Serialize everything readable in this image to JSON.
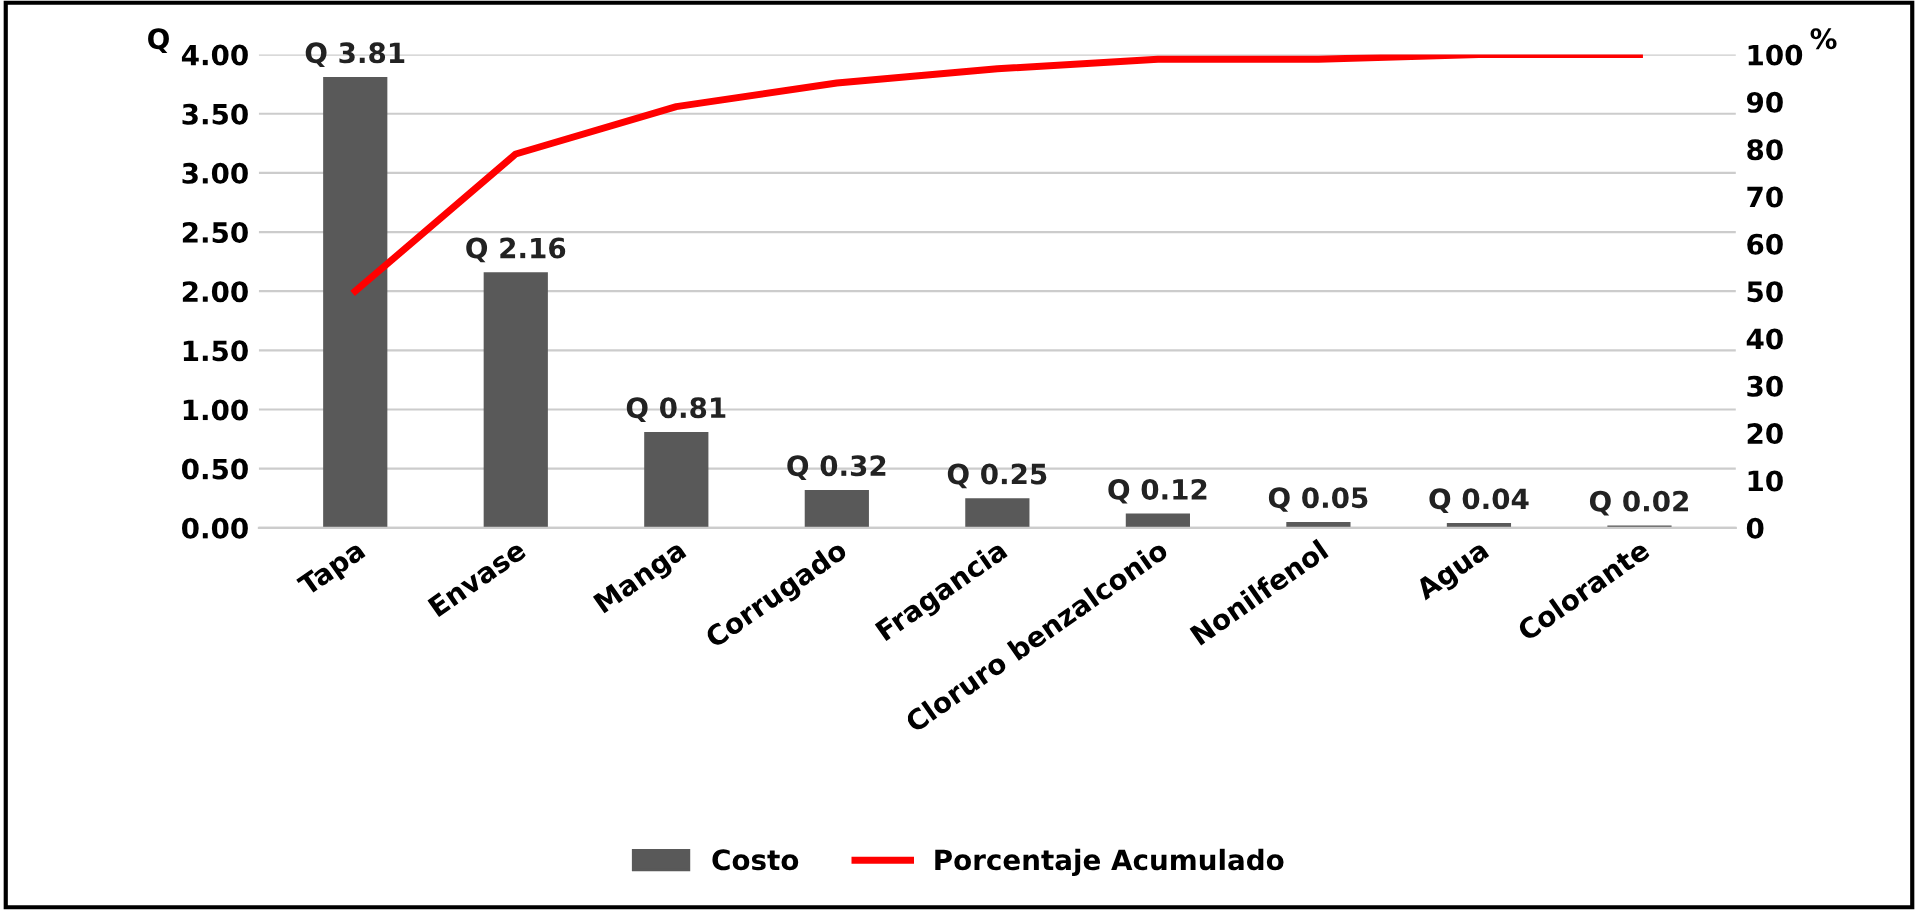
{
  "chart_data": {
    "type": "bar",
    "ylabel": "Q",
    "y2label": "%",
    "categories": [
      "Tapa",
      "Envase",
      "Manga",
      "Corrugado",
      "Fragancia",
      "Cloruro benzalconio",
      "Nonilfenol",
      "Agua",
      "Colorante"
    ],
    "series": [
      {
        "name": "Costo",
        "color": "#595959",
        "values": [
          3.81,
          2.16,
          0.81,
          0.32,
          0.25,
          0.12,
          0.05,
          0.04,
          0.02
        ],
        "value_labels": [
          "Q 3.81",
          "Q 2.16",
          "Q 0.81",
          "Q 0.32",
          "Q 0.25",
          "Q 0.12",
          "Q 0.05",
          "Q 0.04",
          "Q 0.02"
        ]
      },
      {
        "name": "Porcentaje Acumulado",
        "type": "line",
        "axis": "y2",
        "color": "#ff0000",
        "values": [
          50,
          79,
          89,
          94,
          97,
          99,
          99,
          100,
          100
        ]
      }
    ],
    "ylim": [
      0,
      4
    ],
    "yticks": [
      {
        "value": 0,
        "label": "0.00"
      },
      {
        "value": 0.5,
        "label": "0.50"
      },
      {
        "value": 1,
        "label": "1.00"
      },
      {
        "value": 1.5,
        "label": "1.50"
      },
      {
        "value": 2,
        "label": "2.00"
      },
      {
        "value": 2.5,
        "label": "2.50"
      },
      {
        "value": 3,
        "label": "3.00"
      },
      {
        "value": 3.5,
        "label": "3.50"
      },
      {
        "value": 4,
        "label": "4.00"
      }
    ],
    "y2lim": [
      0,
      100
    ],
    "y2ticks": [
      0,
      10,
      20,
      30,
      40,
      50,
      60,
      70,
      80,
      90,
      100
    ],
    "grid": "y",
    "legend": "bottom",
    "marker": "none",
    "line_style": "solid"
  }
}
